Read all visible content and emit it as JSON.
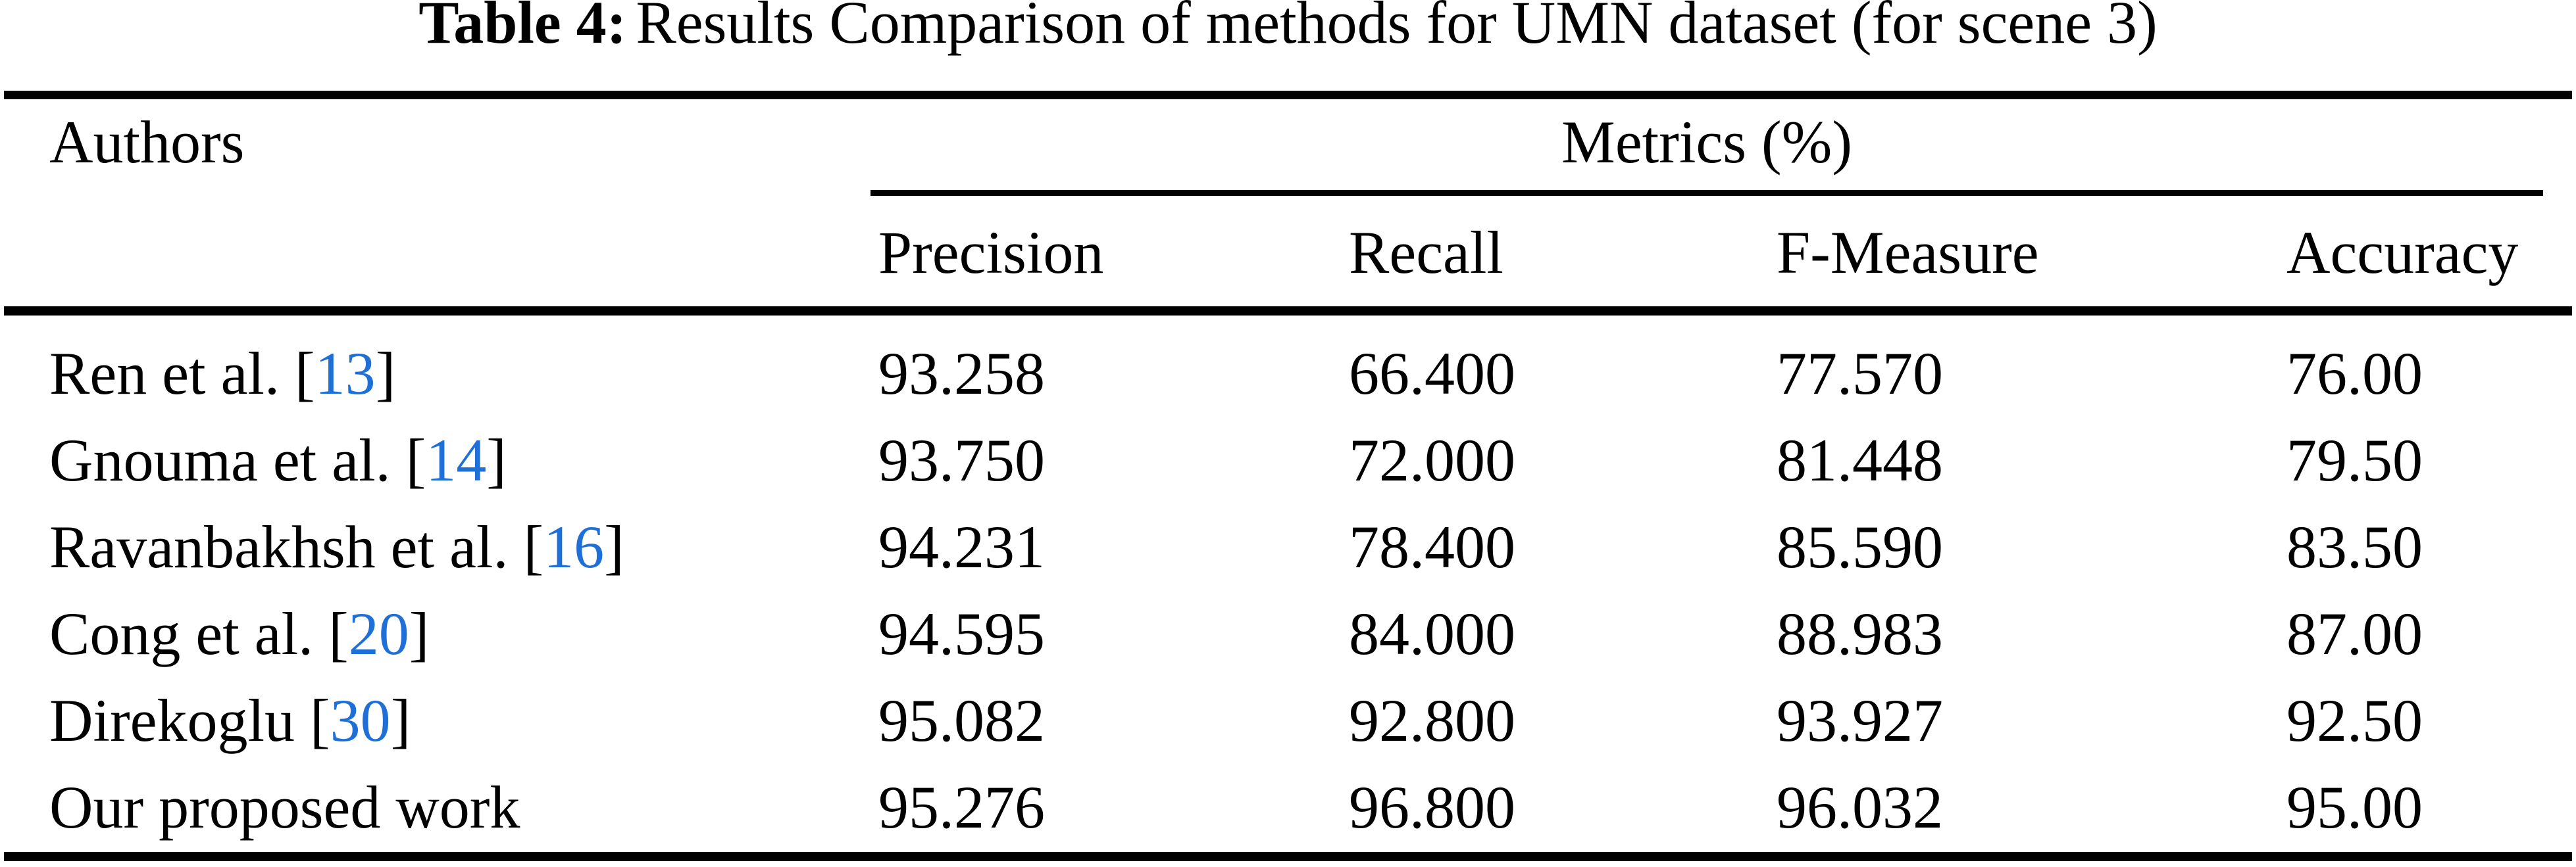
{
  "caption": {
    "label": "Table 4:",
    "text": "Results Comparison of methods for UMN dataset (for scene 3)"
  },
  "colors": {
    "link_blue": "#1E6FD8",
    "text": "#000000",
    "background": "#FFFFFF"
  },
  "table": {
    "authors_header": "Authors",
    "metrics_group_header": "Metrics (%)",
    "metric_headers": [
      "Precision",
      "Recall",
      "F-Measure",
      "Accuracy"
    ],
    "rows": [
      {
        "author": "Ren et al.",
        "cite_open": " [",
        "citation": "13",
        "cite_close": "]",
        "precision": "93.258",
        "recall": "66.400",
        "f_measure": "77.570",
        "accuracy": "76.00"
      },
      {
        "author": "Gnouma et al.",
        "cite_open": " [",
        "citation": "14",
        "cite_close": "]",
        "precision": "93.750",
        "recall": "72.000",
        "f_measure": "81.448",
        "accuracy": "79.50"
      },
      {
        "author": "Ravanbakhsh et al.",
        "cite_open": " [",
        "citation": "16",
        "cite_close": "]",
        "precision": "94.231",
        "recall": "78.400",
        "f_measure": "85.590",
        "accuracy": "83.50"
      },
      {
        "author": "Cong et al.",
        "cite_open": " [",
        "citation": "20",
        "cite_close": "]",
        "precision": "94.595",
        "recall": "84.000",
        "f_measure": "88.983",
        "accuracy": "87.00"
      },
      {
        "author": "Direkoglu",
        "cite_open": " [",
        "citation": "30",
        "cite_close": "]",
        "precision": "95.082",
        "recall": "92.800",
        "f_measure": "93.927",
        "accuracy": "92.50"
      },
      {
        "author": "Our proposed work",
        "precision": "95.276",
        "recall": "96.800",
        "f_measure": "96.032",
        "accuracy": "95.00"
      }
    ]
  }
}
